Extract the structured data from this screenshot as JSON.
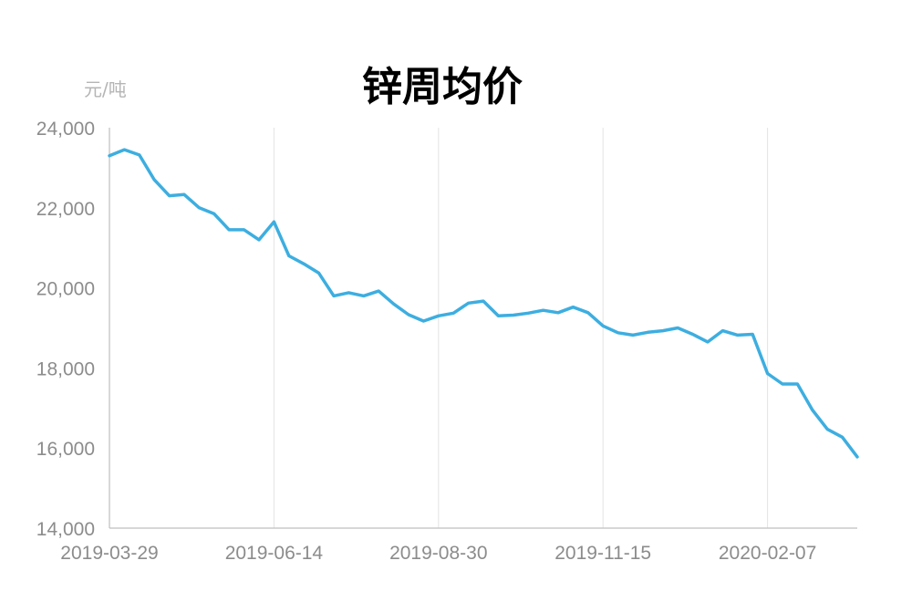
{
  "chart_data": {
    "type": "line",
    "title": "锌周均价",
    "ylabel": "元/吨",
    "xlabel": "",
    "ylim": [
      14000,
      24000
    ],
    "y_ticks": [
      14000,
      16000,
      18000,
      20000,
      22000,
      24000
    ],
    "y_tick_labels": [
      "14,000",
      "16,000",
      "18,000",
      "20,000",
      "22,000",
      "24,000"
    ],
    "x_tick_labels": [
      "2019-03-29",
      "2019-06-14",
      "2019-08-30",
      "2019-11-15",
      "2020-02-07"
    ],
    "x_tick_index": [
      0,
      11,
      22,
      33,
      44
    ],
    "grid_vertical": true,
    "grid_horizontal": false,
    "legend": "none",
    "series": [
      {
        "color": "#3daee0",
        "values": [
          23300,
          23450,
          23320,
          22700,
          22300,
          22330,
          22000,
          21850,
          21450,
          21450,
          21200,
          21650,
          20800,
          20600,
          20370,
          19800,
          19880,
          19800,
          19920,
          19600,
          19330,
          19170,
          19300,
          19370,
          19620,
          19670,
          19300,
          19320,
          19370,
          19440,
          19380,
          19520,
          19380,
          19050,
          18880,
          18820,
          18890,
          18930,
          19000,
          18840,
          18650,
          18930,
          18820,
          18840,
          17860,
          17600,
          17600,
          16950,
          16470,
          16270,
          15780
        ]
      }
    ]
  }
}
